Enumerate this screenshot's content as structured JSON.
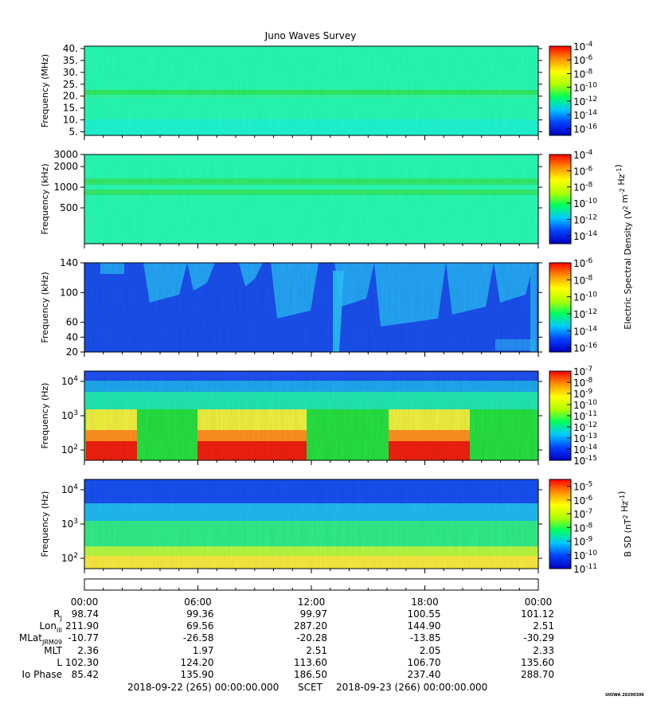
{
  "title": "Juno Waves Survey",
  "colors": {
    "colormap": [
      "#0000c0",
      "#0040ff",
      "#00c8ff",
      "#00ff60",
      "#b0ff00",
      "#ffff00",
      "#ff9000",
      "#ff0000"
    ]
  },
  "chart_data": [
    {
      "type": "heatmap",
      "panel": "waves-high",
      "ylabel": "Frequency (MHz)",
      "yticks": [
        "40.",
        "35.",
        "30.",
        "25.",
        "20.",
        "15.",
        "10.",
        "5."
      ],
      "ytick_values": [
        40,
        35,
        30,
        25,
        20,
        15,
        10,
        5
      ],
      "ylim": [
        3.5,
        41
      ],
      "colorbar_ticks": [
        "10^-4",
        "10^-6",
        "10^-8",
        "10^-10",
        "10^-12",
        "10^-14",
        "10^-16"
      ],
      "colorbar_range": [
        -17,
        -4
      ]
    },
    {
      "type": "heatmap",
      "panel": "waves-mid",
      "ylabel": "Frequency (kHz)",
      "yticks": [
        "3000",
        "2000",
        "1000",
        "500"
      ],
      "ytick_values": [
        3000,
        2000,
        1000,
        500
      ],
      "ylim": [
        150,
        3000
      ],
      "colorbar_label": "Electric Spectral Density (V^2 m^-2 Hz^-1)",
      "colorbar_ticks": [
        "10^-4",
        "10^-6",
        "10^-8",
        "10^-10",
        "10^-12",
        "10^-14"
      ],
      "colorbar_range": [
        -15,
        -4
      ]
    },
    {
      "type": "heatmap",
      "panel": "waves-low",
      "ylabel": "Frequency (kHz)",
      "yticks": [
        "140",
        "100",
        "60",
        "40",
        "20"
      ],
      "ytick_values": [
        140,
        100,
        60,
        40,
        20
      ],
      "ylim": [
        20,
        140
      ],
      "colorbar_ticks": [
        "10^-6",
        "10^-8",
        "10^-10",
        "10^-12",
        "10^-14",
        "10^-16"
      ],
      "colorbar_range": [
        -16.5,
        -6
      ]
    },
    {
      "type": "heatmap",
      "panel": "waves-lfr",
      "ylabel": "Frequency (Hz)",
      "yticks": [
        "10^4",
        "10^3",
        "10^2"
      ],
      "ytick_values": [
        10000,
        1000,
        100
      ],
      "ylim": [
        50,
        20000
      ],
      "colorbar_ticks": [
        "10^-7",
        "10^-8",
        "10^-9",
        "10^-10",
        "10^-11",
        "10^-12",
        "10^-13",
        "10^-14",
        "10^-15"
      ],
      "colorbar_range": [
        -15,
        -7
      ]
    },
    {
      "type": "heatmap",
      "panel": "magnetic",
      "ylabel": "Frequency (Hz)",
      "yticks": [
        "10^4",
        "10^3",
        "10^2"
      ],
      "ytick_values": [
        10000,
        1000,
        100
      ],
      "ylim": [
        50,
        20000
      ],
      "colorbar_label": "B SD (nT^2 Hz^-1)",
      "colorbar_ticks": [
        "10^-5",
        "10^-6",
        "10^-7",
        "10^-8",
        "10^-9",
        "10^-10",
        "10^-11"
      ],
      "colorbar_range": [
        -11,
        -4.5
      ]
    }
  ],
  "time_axis": {
    "ticks": [
      "00:00",
      "06:00",
      "12:00",
      "18:00",
      "00:00"
    ],
    "rows": [
      {
        "label": "R",
        "sub": "J",
        "values": [
          "98.74",
          "99.36",
          "99.97",
          "100.55",
          "101.12"
        ]
      },
      {
        "label": "Lon",
        "sub": "III",
        "values": [
          "211.90",
          "69.56",
          "287.20",
          "144.90",
          "2.51"
        ]
      },
      {
        "label": "MLat",
        "sub": "JRM09",
        "values": [
          "-10.77",
          "-26.58",
          "-20.28",
          "-13.85",
          "-30.29"
        ]
      },
      {
        "label": "MLT",
        "sub": "",
        "values": [
          "2.36",
          "1.97",
          "2.51",
          "2.05",
          "2.33"
        ]
      },
      {
        "label": "L",
        "sub": "",
        "values": [
          "102.30",
          "124.20",
          "113.60",
          "106.70",
          "135.60"
        ]
      },
      {
        "label": "Io Phase",
        "sub": "",
        "values": [
          "85.42",
          "135.90",
          "186.50",
          "237.40",
          "288.70"
        ]
      }
    ],
    "start": "2018-09-22 (265) 00:00:00.000",
    "scet": "SCET",
    "end": "2018-09-23 (266) 00:00:00.000"
  },
  "footer": "UIOWA 20200306"
}
